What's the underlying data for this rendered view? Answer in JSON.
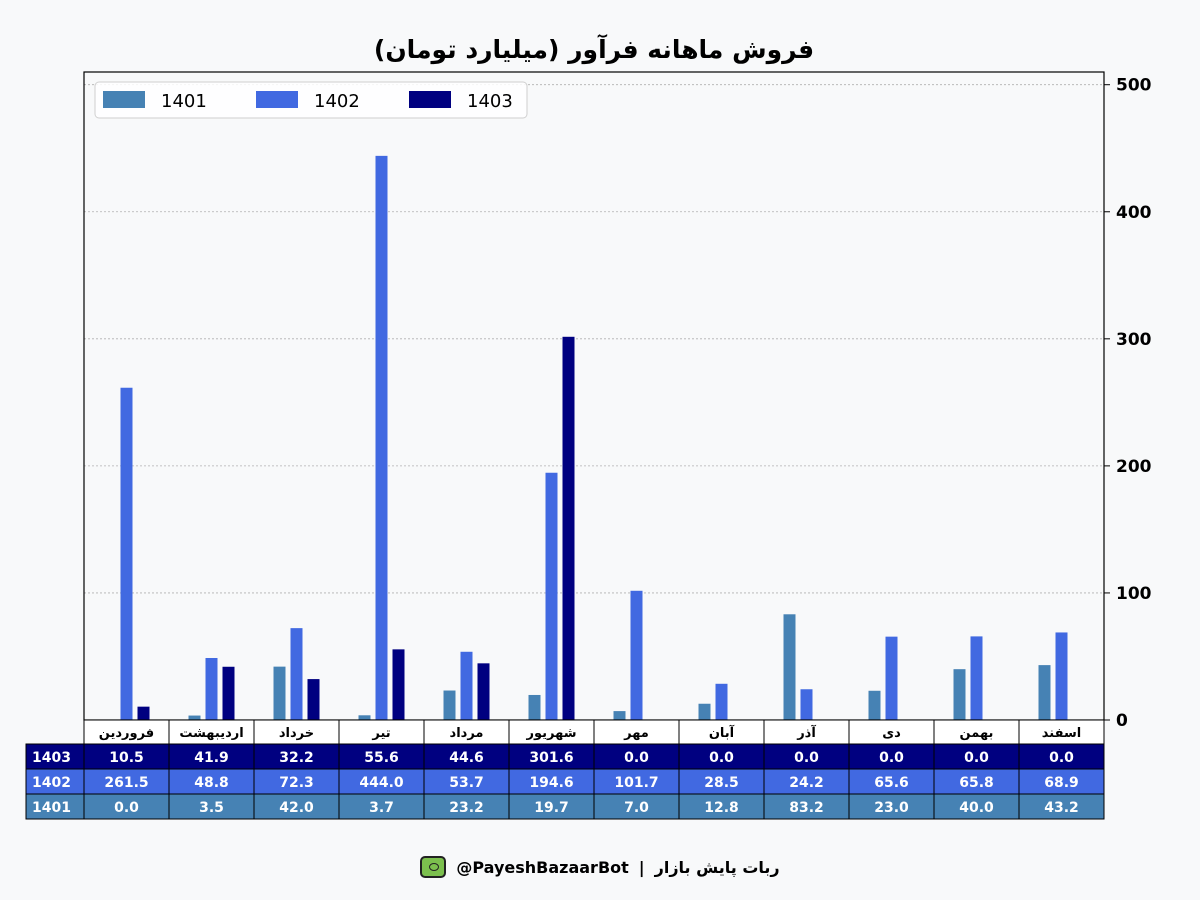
{
  "chart_data": {
    "type": "bar",
    "title": "فروش ماهانه فرآور (میلیارد تومان)",
    "categories": [
      "فروردین",
      "اردیبهشت",
      "خرداد",
      "تیر",
      "مرداد",
      "شهریور",
      "مهر",
      "آبان",
      "آذر",
      "دی",
      "بهمن",
      "اسفند"
    ],
    "series": [
      {
        "name": "1401",
        "color": "#4682b4",
        "values": [
          0.0,
          3.5,
          42.0,
          3.7,
          23.2,
          19.7,
          7.0,
          12.8,
          83.2,
          23.0,
          40.0,
          43.2
        ]
      },
      {
        "name": "1402",
        "color": "#4169e1",
        "values": [
          261.5,
          48.8,
          72.3,
          444.0,
          53.7,
          194.6,
          101.7,
          28.5,
          24.2,
          65.6,
          65.8,
          68.9
        ]
      },
      {
        "name": "1403",
        "color": "#000080",
        "values": [
          10.5,
          41.9,
          32.2,
          55.6,
          44.6,
          301.6,
          0.0,
          0.0,
          0.0,
          0.0,
          0.0,
          0.0
        ]
      }
    ],
    "ylim": [
      0,
      510
    ],
    "yticks": [
      0,
      100,
      200,
      300,
      400,
      500
    ],
    "grid": true,
    "legend_position": "top-left",
    "y_axis_side": "right",
    "table": {
      "row_order": [
        "1403",
        "1402",
        "1401"
      ],
      "cells": {
        "1403": [
          "10.5",
          "41.9",
          "32.2",
          "55.6",
          "44.6",
          "301.6",
          "0.0",
          "0.0",
          "0.0",
          "0.0",
          "0.0",
          "0.0"
        ],
        "1402": [
          "261.5",
          "48.8",
          "72.3",
          "444.0",
          "53.7",
          "194.6",
          "101.7",
          "28.5",
          "24.2",
          "65.6",
          "65.8",
          "68.9"
        ],
        "1401": [
          "0.0",
          "3.5",
          "42.0",
          "3.7",
          "23.2",
          "19.7",
          "7.0",
          "12.8",
          "83.2",
          "23.0",
          "40.0",
          "43.2"
        ]
      }
    }
  },
  "footer": {
    "handle": "@PayeshBazaarBot",
    "separator": "|",
    "bot_name": "ربات پایش بازار",
    "icon": "monitor-bot-icon"
  }
}
